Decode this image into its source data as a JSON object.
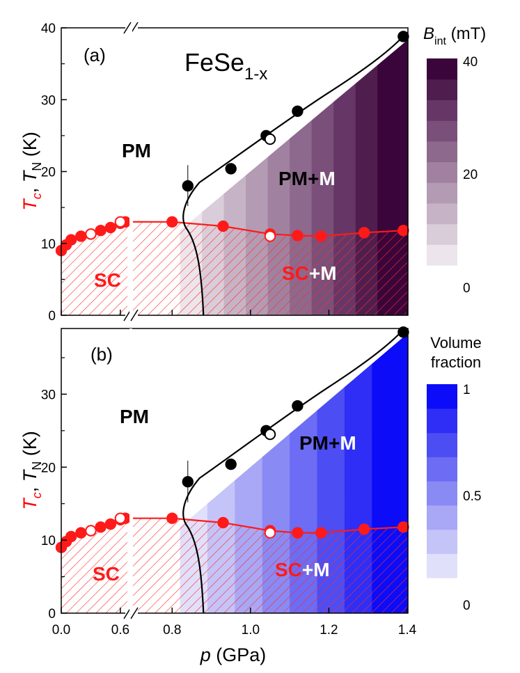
{
  "chart_data": [
    {
      "type": "scatter",
      "panel_label": "(a)",
      "title": "FeSe",
      "title_sub": "1-x",
      "xlabel_var": "p",
      "xlabel_unit": " (GPa)",
      "ylabel": {
        "tc": "T",
        "tc_sub": "c",
        "tn": "T",
        "tn_sub": "N",
        "unit": " (K)"
      },
      "ylim": [
        0,
        40
      ],
      "y_ticks": [
        "0",
        "10",
        "20",
        "30",
        "40"
      ],
      "x_ticks_left": [
        "0.0",
        "0.6"
      ],
      "x_ticks_right": [
        "0.8",
        "1.0",
        "1.2",
        "1.4"
      ],
      "region_labels": {
        "pm": "PM",
        "pm_m_a": "PM+",
        "pm_m_b": "M",
        "sc": "SC",
        "sc_m_a": "SC",
        "sc_m_b": "+M"
      },
      "colorbar": {
        "title": "B",
        "title_sub": "int",
        "unit": " (mT)",
        "ticks": [
          "40",
          "20",
          "0"
        ],
        "colors": [
          "#ece6ec",
          "#d9cdd9",
          "#c6b4c6",
          "#b39bb3",
          "#a082a0",
          "#8d698d",
          "#7a507a",
          "#663766",
          "#4f1e4f",
          "#3a053a"
        ]
      },
      "series": [
        {
          "marker": "filled-black",
          "points": [
            [
              0.84,
              18
            ],
            [
              0.95,
              20.4
            ],
            [
              1.04,
              25
            ],
            [
              1.12,
              28.4
            ],
            [
              1.39,
              38.8
            ]
          ]
        },
        {
          "marker": "open-black",
          "points": [
            [
              1.05,
              24.5
            ]
          ]
        },
        {
          "marker": "filled-red",
          "points": [
            [
              0.0,
              9.0
            ],
            [
              0.05,
              9.8
            ],
            [
              0.1,
              10.5
            ],
            [
              0.2,
              11.0
            ],
            [
              0.3,
              11.3
            ],
            [
              0.4,
              11.8
            ],
            [
              0.5,
              12.2
            ],
            [
              0.6,
              12.8
            ],
            [
              0.65,
              13.0
            ],
            [
              0.8,
              13.0
            ],
            [
              0.93,
              12.4
            ],
            [
              1.05,
              11.3
            ],
            [
              1.12,
              11.1
            ],
            [
              1.18,
              11.0
            ],
            [
              1.29,
              11.5
            ],
            [
              1.39,
              11.8
            ]
          ]
        },
        {
          "marker": "open-red",
          "points": [
            [
              0.3,
              11.3
            ],
            [
              0.6,
              13.0
            ],
            [
              1.05,
              11.0
            ]
          ]
        }
      ]
    },
    {
      "type": "scatter",
      "panel_label": "(b)",
      "xlabel_var": "p",
      "xlabel_unit": " (GPa)",
      "ylabel": {
        "tc": "T",
        "tc_sub": "c",
        "tn": "T",
        "tn_sub": "N",
        "unit": " (K)"
      },
      "ylim": [
        0,
        39
      ],
      "y_ticks": [
        "0",
        "10",
        "20",
        "30"
      ],
      "x_ticks_left": [
        "0.0",
        "0.6"
      ],
      "x_ticks_right": [
        "0.8",
        "1.0",
        "1.2",
        "1.4"
      ],
      "region_labels": {
        "pm": "PM",
        "pm_m_a": "PM+",
        "pm_m_b": "M",
        "sc": "SC",
        "sc_m_a": "SC",
        "sc_m_b": "+M"
      },
      "colorbar": {
        "title_line1": "Volume",
        "title_line2": "fraction",
        "ticks": [
          "1",
          "0.5",
          "0"
        ],
        "colors": [
          "#e0e0fb",
          "#c4c4f8",
          "#a8a8f6",
          "#8a8af4",
          "#6c6cf4",
          "#4d4df4",
          "#2e2ef6",
          "#0c0cf8"
        ]
      },
      "series": [
        {
          "marker": "filled-black",
          "points": [
            [
              0.84,
              18
            ],
            [
              0.95,
              20.4
            ],
            [
              1.04,
              25
            ],
            [
              1.12,
              28.4
            ],
            [
              1.39,
              38.5
            ]
          ]
        },
        {
          "marker": "open-black",
          "points": [
            [
              1.05,
              24.5
            ]
          ]
        },
        {
          "marker": "filled-red",
          "points": [
            [
              0.0,
              9.0
            ],
            [
              0.05,
              9.8
            ],
            [
              0.1,
              10.5
            ],
            [
              0.2,
              11.0
            ],
            [
              0.3,
              11.3
            ],
            [
              0.4,
              11.8
            ],
            [
              0.5,
              12.2
            ],
            [
              0.6,
              12.8
            ],
            [
              0.65,
              13.0
            ],
            [
              0.8,
              13.0
            ],
            [
              0.93,
              12.4
            ],
            [
              1.05,
              11.3
            ],
            [
              1.12,
              11.0
            ],
            [
              1.18,
              11.0
            ],
            [
              1.29,
              11.5
            ],
            [
              1.39,
              11.8
            ]
          ]
        },
        {
          "marker": "open-red",
          "points": [
            [
              0.3,
              11.3
            ],
            [
              0.6,
              13.0
            ],
            [
              1.05,
              11.0
            ]
          ]
        }
      ]
    }
  ]
}
